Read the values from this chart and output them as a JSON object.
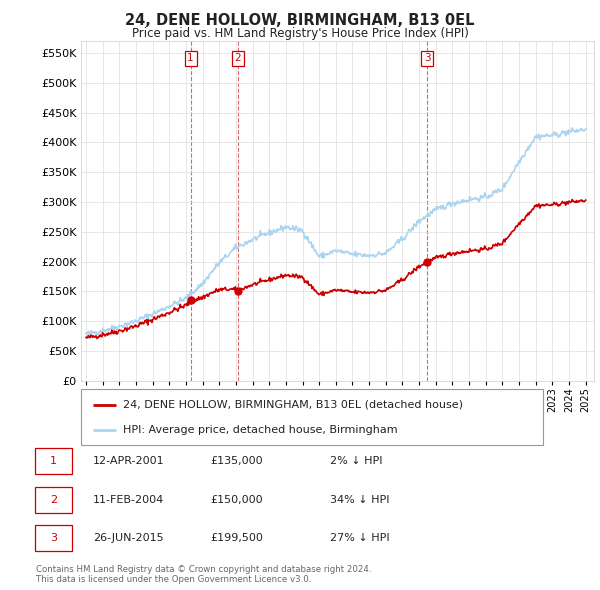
{
  "title": "24, DENE HOLLOW, BIRMINGHAM, B13 0EL",
  "subtitle": "Price paid vs. HM Land Registry's House Price Index (HPI)",
  "xlim": [
    1994.7,
    2025.5
  ],
  "ylim": [
    0,
    570000
  ],
  "yticks": [
    0,
    50000,
    100000,
    150000,
    200000,
    250000,
    300000,
    350000,
    400000,
    450000,
    500000,
    550000
  ],
  "ytick_labels": [
    "£0",
    "£50K",
    "£100K",
    "£150K",
    "£200K",
    "£250K",
    "£300K",
    "£350K",
    "£400K",
    "£450K",
    "£500K",
    "£550K"
  ],
  "sale_dates": [
    2001.28,
    2004.11,
    2015.48
  ],
  "sale_prices": [
    135000,
    150000,
    199500
  ],
  "sale_labels": [
    "1",
    "2",
    "3"
  ],
  "hpi_color": "#aad4f0",
  "price_color": "#cc0000",
  "sale_marker_color": "#cc0000",
  "vline_color": "#cc0000",
  "legend_line1": "24, DENE HOLLOW, BIRMINGHAM, B13 0EL (detached house)",
  "legend_line2": "HPI: Average price, detached house, Birmingham",
  "table_entries": [
    {
      "num": "1",
      "date": "12-APR-2001",
      "price": "£135,000",
      "pct": "2% ↓ HPI"
    },
    {
      "num": "2",
      "date": "11-FEB-2004",
      "price": "£150,000",
      "pct": "34% ↓ HPI"
    },
    {
      "num": "3",
      "date": "26-JUN-2015",
      "price": "£199,500",
      "pct": "27% ↓ HPI"
    }
  ],
  "footnote": "Contains HM Land Registry data © Crown copyright and database right 2024.\nThis data is licensed under the Open Government Licence v3.0.",
  "background_color": "#ffffff",
  "grid_color": "#dddddd",
  "chart_bg": "#f5f5f5"
}
